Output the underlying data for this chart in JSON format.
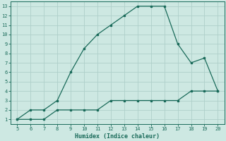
{
  "xlabel": "Humidex (Indice chaleur)",
  "xlim": [
    4.5,
    20.5
  ],
  "ylim": [
    0.5,
    13.5
  ],
  "xticks": [
    5,
    6,
    7,
    8,
    9,
    10,
    11,
    12,
    13,
    14,
    15,
    16,
    17,
    18,
    19,
    20
  ],
  "yticks": [
    1,
    2,
    3,
    4,
    5,
    6,
    7,
    8,
    9,
    10,
    11,
    12,
    13
  ],
  "bg_color": "#cde8e2",
  "line_color": "#1a6b5a",
  "grid_color": "#aecfca",
  "line1_x": [
    5,
    6,
    7,
    8,
    9,
    10,
    11,
    12,
    13,
    14,
    15,
    16,
    17,
    18,
    19,
    20
  ],
  "line1_y": [
    1,
    2,
    2,
    3,
    6,
    8.5,
    10,
    11,
    12,
    13,
    13,
    13,
    9,
    7,
    7.5,
    4
  ],
  "line2_x": [
    5,
    6,
    7,
    8,
    9,
    10,
    11,
    12,
    13,
    14,
    15,
    16,
    17,
    18,
    19,
    20
  ],
  "line2_y": [
    1,
    1,
    1,
    2,
    2,
    2,
    2,
    3,
    3,
    3,
    3,
    3,
    3,
    4,
    4,
    4
  ]
}
